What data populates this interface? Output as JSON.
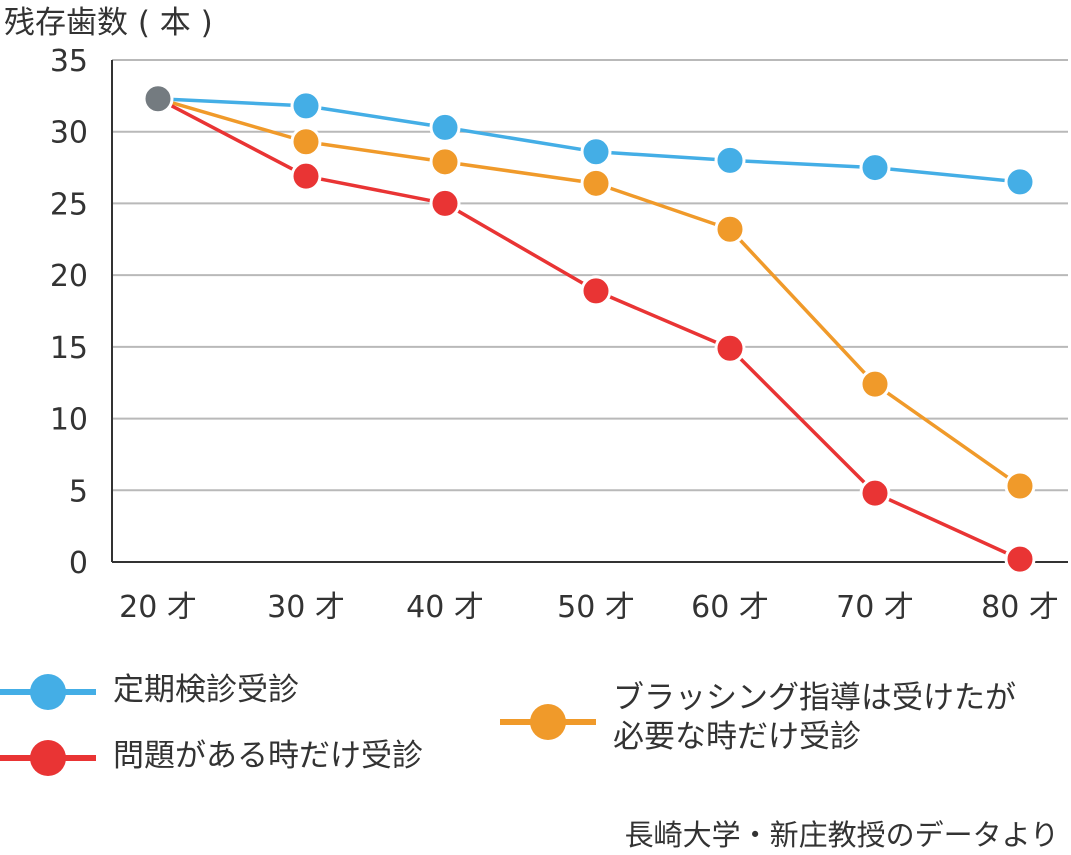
{
  "chart_data": {
    "type": "line",
    "ylabel": "残存歯数 ( 本 )",
    "ylim": [
      0,
      35
    ],
    "yticks": [
      0,
      5,
      10,
      15,
      20,
      25,
      30,
      35
    ],
    "grid": true,
    "categories": [
      "20 才",
      "30 才",
      "40 才",
      "50 才",
      "60 才",
      "70 才",
      "80 才"
    ],
    "start_point": {
      "category": "20 才",
      "value": 32.3,
      "color": "#747b80"
    },
    "series": [
      {
        "name": "定期検診受診",
        "color": "#44aee6",
        "values": [
          32.3,
          31.8,
          30.3,
          28.6,
          28.0,
          27.5,
          26.5
        ]
      },
      {
        "name": "ブラッシング指導は受けたが必要な時だけ受診",
        "color": "#f09a2a",
        "values": [
          32.3,
          29.3,
          27.9,
          26.4,
          23.2,
          12.4,
          5.3
        ]
      },
      {
        "name": "問題がある時だけ受診",
        "color": "#e93434",
        "values": [
          32.3,
          26.9,
          25.0,
          18.9,
          14.9,
          4.8,
          0.2
        ]
      }
    ],
    "legend": {
      "placement": "bottom",
      "items": [
        {
          "series": "定期検診受診",
          "lines": [
            "定期検診受診"
          ]
        },
        {
          "series": "問題がある時だけ受診",
          "lines": [
            "問題がある時だけ受診"
          ]
        },
        {
          "series": "ブラッシング指導は受けたが必要な時だけ受診",
          "lines": [
            "ブラッシング指導は受けたが",
            "必要な時だけ受診"
          ]
        }
      ]
    },
    "source": "長崎大学・新庄教授のデータより"
  }
}
